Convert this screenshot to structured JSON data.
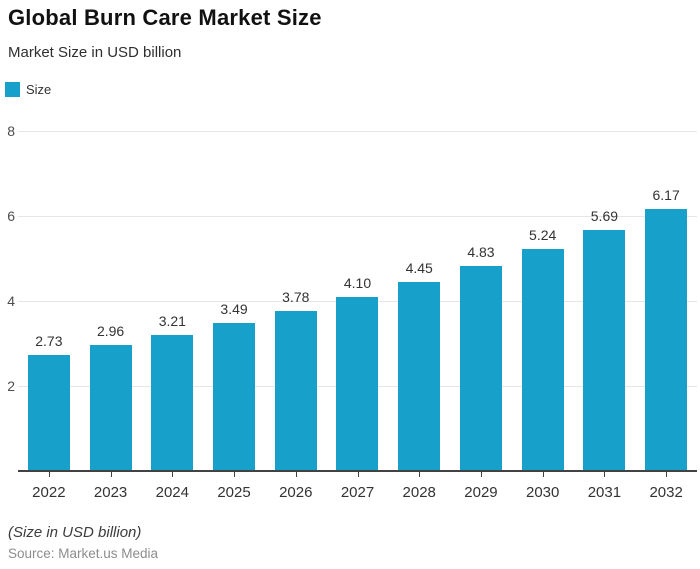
{
  "header": {
    "title": "Global Burn Care Market Size",
    "subtitle": "Market Size in USD billion"
  },
  "legend": {
    "label": "Size"
  },
  "chart_data": {
    "type": "bar",
    "title": "Global Burn Care Market Size",
    "subtitle": "Market Size in USD billion",
    "categories": [
      "2022",
      "2023",
      "2024",
      "2025",
      "2026",
      "2027",
      "2028",
      "2029",
      "2030",
      "2031",
      "2032"
    ],
    "series": [
      {
        "name": "Size",
        "values": [
          2.73,
          2.96,
          3.21,
          3.49,
          3.78,
          4.1,
          4.45,
          4.83,
          5.24,
          5.69,
          6.17
        ]
      }
    ],
    "xlabel": "",
    "ylabel": "",
    "ylim": [
      0,
      8.27
    ],
    "yticks": [
      2,
      4,
      6,
      8
    ],
    "grid": true,
    "data_labels": true,
    "legend_position": "top-left",
    "bar_color": "#17A0C9"
  },
  "footer": {
    "note": "(Size in USD billion)",
    "source": "Source: Market.us Media"
  },
  "colors": {
    "bar": "#17A0C9",
    "axis": "#424242",
    "gridline": "#e6e6e6",
    "text": "#333333",
    "muted": "#8d8d8d"
  }
}
